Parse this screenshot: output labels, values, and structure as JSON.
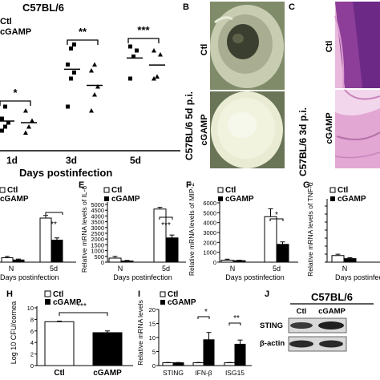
{
  "panel_a": {
    "strain": "C57BL/6",
    "legend": [
      "Ctl",
      "cGAMP"
    ],
    "timepoints": [
      "1d",
      "3d",
      "5d"
    ],
    "significance": [
      "*",
      "**",
      "***"
    ],
    "xlabel": "Days postinfection"
  },
  "panel_b": {
    "letter": "B",
    "side_label": "C57BL/6 5d p.i.",
    "rows": [
      "Ctl",
      "cGAMP"
    ]
  },
  "panel_c": {
    "letter": "C",
    "side_label": "C57BL/6 3d p.i.",
    "rows": [
      "Ctl",
      "cGAMP"
    ]
  },
  "panel_d": {
    "legend": [
      "Ctl",
      "cGAMP"
    ],
    "categories": [
      "N",
      "5d"
    ],
    "significance": "**",
    "xlabel": "Days postinfection"
  },
  "panel_e": {
    "letter": "E",
    "legend": [
      "Ctl",
      "cGAMP"
    ],
    "ylabel": "Relative mRNA levels of IL-6",
    "yticks": [
      "0",
      "500",
      "1000",
      "1500",
      "2000",
      "2500",
      "3000",
      "3500",
      "4000",
      "4500",
      "5000"
    ],
    "categories": [
      "N",
      "5d"
    ],
    "significance": "***",
    "xlabel": "Days postinfection"
  },
  "panel_f": {
    "letter": "F",
    "legend": [
      "Ctl",
      "cGAMP"
    ],
    "ylabel": "Relative mRNA levels of MIP-2",
    "yticks": [
      "0",
      "1000",
      "2000",
      "3000",
      "4000",
      "5000",
      "6000"
    ],
    "categories": [
      "N",
      "5d"
    ],
    "significance": "*",
    "xlabel": "Days postinfection"
  },
  "panel_g": {
    "letter": "G",
    "legend": [
      "Ctl",
      "cGAMP"
    ],
    "ylabel": "Relative mRNA levels of TNF-α",
    "categories": [
      "N"
    ],
    "xlabel": "Days postinfection"
  },
  "panel_h": {
    "letter": "H",
    "legend": [
      "Ctl",
      "cGAMP"
    ],
    "ylabel": "Log 10 CFU/cornea",
    "yticks": [
      "0",
      "2",
      "4",
      "6",
      "8",
      "10"
    ],
    "categories": [
      "Ctl",
      "cGAMP"
    ],
    "significance": "***"
  },
  "panel_i": {
    "letter": "I",
    "legend": [
      "Ctl",
      "cGAMP"
    ],
    "ylabel": "Relative mRNA levels",
    "yticks": [
      "0",
      "5",
      "10",
      "15",
      "20"
    ],
    "categories": [
      "STING",
      "IFN-β",
      "ISG15"
    ],
    "significance": [
      "*",
      "**"
    ]
  },
  "panel_j": {
    "letter": "J",
    "strain": "C57BL/6",
    "columns": [
      "Ctl",
      "cGAMP"
    ],
    "rows": [
      "STING",
      "β-actin"
    ]
  },
  "colors": {
    "ctl": "#ffffff",
    "cgamp": "#000000"
  },
  "chart_data": [
    {
      "panel": "A",
      "type": "scatter",
      "x": [
        "1d",
        "3d",
        "5d"
      ],
      "series": [
        {
          "name": "Ctl",
          "y": [
            [
              2.0,
              2.2,
              2.4,
              2.6,
              3.2
            ],
            [
              3.2,
              4.6,
              4.9,
              5.3,
              6.1,
              6.3
            ],
            [
              4.6,
              5.7,
              6.0,
              6.2
            ]
          ]
        },
        {
          "name": "cGAMP",
          "y": [
            [
              1.9,
              2.2,
              2.5,
              3.0
            ],
            [
              3.0,
              3.8,
              4.2,
              5.0,
              5.3
            ],
            [
              4.6,
              4.7,
              5.8,
              6.0
            ]
          ]
        }
      ]
    },
    {
      "panel": "D",
      "type": "bar",
      "categories": [
        "N",
        "5d"
      ],
      "series": [
        {
          "name": "Ctl",
          "values": [
            0.1,
            1.0
          ],
          "errors": [
            0.03,
            0.06
          ]
        },
        {
          "name": "cGAMP",
          "values": [
            0.05,
            0.5
          ],
          "errors": [
            0.02,
            0.05
          ]
        }
      ]
    },
    {
      "panel": "E",
      "type": "bar",
      "categories": [
        "N",
        "5d"
      ],
      "ylim": [
        0,
        5000
      ],
      "series": [
        {
          "name": "Ctl",
          "values": [
            350,
            4600
          ],
          "errors": [
            150,
            150
          ]
        },
        {
          "name": "cGAMP",
          "values": [
            100,
            2100
          ],
          "errors": [
            50,
            250
          ]
        }
      ]
    },
    {
      "panel": "F",
      "type": "bar",
      "categories": [
        "N",
        "5d"
      ],
      "ylim": [
        0,
        6000
      ],
      "series": [
        {
          "name": "Ctl",
          "values": [
            200,
            4600
          ],
          "errors": [
            100,
            800
          ]
        },
        {
          "name": "cGAMP",
          "values": [
            150,
            1800
          ],
          "errors": [
            50,
            250
          ]
        }
      ]
    },
    {
      "panel": "G",
      "type": "bar",
      "categories": [
        "N"
      ],
      "series": [
        {
          "name": "Ctl",
          "values": [
            0.15
          ],
          "errors": [
            0.03
          ]
        },
        {
          "name": "cGAMP",
          "values": [
            0.08
          ],
          "errors": [
            0.02
          ]
        }
      ]
    },
    {
      "panel": "H",
      "type": "bar",
      "categories": [
        "Ctl",
        "cGAMP"
      ],
      "ylim": [
        0,
        10
      ],
      "values": [
        7.6,
        5.7
      ],
      "errors": [
        0.1,
        0.3
      ]
    },
    {
      "panel": "I",
      "type": "bar",
      "categories": [
        "STING",
        "IFN-β",
        "ISG15"
      ],
      "ylim": [
        0,
        20
      ],
      "series": [
        {
          "name": "Ctl",
          "values": [
            1,
            1,
            1
          ],
          "errors": [
            0.1,
            0.1,
            0.1
          ]
        },
        {
          "name": "cGAMP",
          "values": [
            1,
            9.2,
            7.6
          ],
          "errors": [
            0.1,
            2.6,
            1.5
          ]
        }
      ]
    }
  ]
}
